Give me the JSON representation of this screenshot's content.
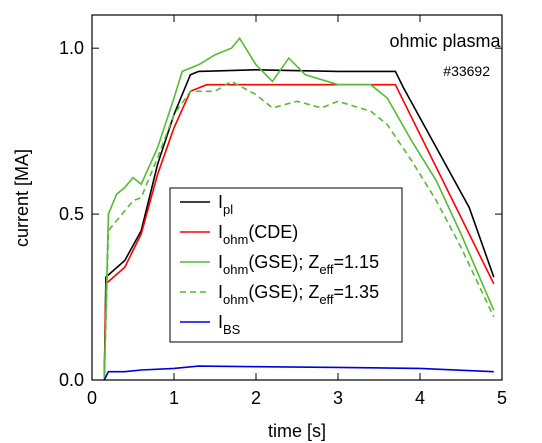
{
  "chart_data": {
    "type": "line",
    "annotations": [
      "ohmic plasma",
      "#33692"
    ],
    "xlabel": "time [s]",
    "ylabel": "current [MA]",
    "xlim": [
      0,
      5
    ],
    "xticks": [
      0,
      1,
      2,
      3,
      4,
      5
    ],
    "ylim": [
      0,
      1.1
    ],
    "yticks": [
      {
        "value": 0,
        "label": "0.0"
      },
      {
        "value": 0.5,
        "label": "0.5"
      },
      {
        "value": 1,
        "label": "1.0"
      }
    ],
    "legend": "lower-left",
    "series": [
      {
        "name": [
          {
            "text": "I"
          },
          {
            "text": "pl",
            "sub": true
          }
        ],
        "color": "#000000",
        "x": [
          0.15,
          0.17,
          0.4,
          0.6,
          0.8,
          1.0,
          1.2,
          1.3,
          2.0,
          3.0,
          3.7,
          3.8,
          4.2,
          4.6,
          4.9
        ],
        "values": [
          0,
          0.31,
          0.36,
          0.45,
          0.65,
          0.8,
          0.92,
          0.93,
          0.935,
          0.93,
          0.93,
          0.88,
          0.7,
          0.52,
          0.31
        ]
      },
      {
        "name": [
          {
            "text": "I"
          },
          {
            "text": "ohm",
            "sub": true
          },
          {
            "text": "(CDE)"
          }
        ],
        "color": "#ff0000",
        "x": [
          0.15,
          0.17,
          0.4,
          0.6,
          0.8,
          1.0,
          1.2,
          1.4,
          2.5,
          3.7,
          3.8,
          4.2,
          4.6,
          4.9
        ],
        "values": [
          0,
          0.29,
          0.34,
          0.44,
          0.62,
          0.76,
          0.87,
          0.89,
          0.89,
          0.89,
          0.84,
          0.64,
          0.44,
          0.29
        ]
      },
      {
        "name": [
          {
            "text": "I"
          },
          {
            "text": "ohm",
            "sub": true
          },
          {
            "text": "(GSE); Z"
          },
          {
            "text": "eff",
            "sub": true
          },
          {
            "text": "=1.15"
          }
        ],
        "color": "#55bb33",
        "x": [
          0.15,
          0.2,
          0.3,
          0.4,
          0.5,
          0.6,
          0.8,
          1.0,
          1.1,
          1.3,
          1.5,
          1.7,
          1.8,
          2.0,
          2.2,
          2.4,
          2.6,
          3.0,
          3.4,
          3.6,
          3.9,
          4.2,
          4.5,
          4.9
        ],
        "values": [
          0,
          0.5,
          0.56,
          0.58,
          0.61,
          0.59,
          0.7,
          0.85,
          0.93,
          0.95,
          0.98,
          1.0,
          1.03,
          0.95,
          0.9,
          0.97,
          0.92,
          0.89,
          0.89,
          0.85,
          0.72,
          0.6,
          0.44,
          0.21
        ]
      },
      {
        "name": [
          {
            "text": "I"
          },
          {
            "text": "ohm",
            "sub": true
          },
          {
            "text": "(GSE); Z"
          },
          {
            "text": "eff",
            "sub": true
          },
          {
            "text": "=1.35"
          }
        ],
        "color": "#55bb33",
        "dash": true,
        "x": [
          0.15,
          0.2,
          0.3,
          0.5,
          0.6,
          0.8,
          1.0,
          1.2,
          1.5,
          1.7,
          2.0,
          2.2,
          2.5,
          2.8,
          3.0,
          3.4,
          3.6,
          3.9,
          4.2,
          4.5,
          4.9
        ],
        "values": [
          0,
          0.45,
          0.48,
          0.54,
          0.55,
          0.67,
          0.8,
          0.87,
          0.87,
          0.9,
          0.86,
          0.82,
          0.84,
          0.82,
          0.84,
          0.81,
          0.77,
          0.66,
          0.54,
          0.4,
          0.19
        ]
      },
      {
        "name": [
          {
            "text": "I"
          },
          {
            "text": "BS",
            "sub": true
          }
        ],
        "color": "#0000dd",
        "x": [
          0.15,
          0.2,
          0.4,
          0.6,
          1.0,
          1.3,
          2.0,
          3.0,
          4.0,
          4.9
        ],
        "values": [
          0,
          0.025,
          0.025,
          0.03,
          0.035,
          0.042,
          0.04,
          0.038,
          0.035,
          0.025
        ]
      }
    ]
  }
}
